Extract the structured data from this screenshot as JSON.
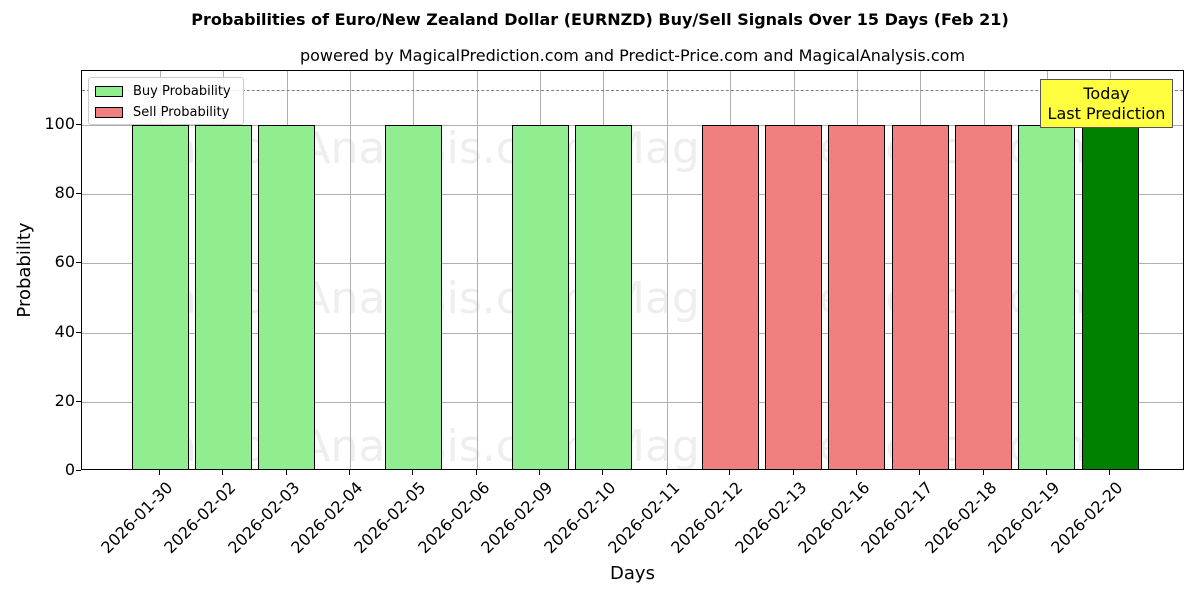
{
  "title": "Probabilities of Euro/New Zealand Dollar (EURNZD) Buy/Sell Signals Over 15 Days (Feb 21)",
  "subtitle": "powered by MagicalPrediction.com and Predict-Price.com and MagicalAnalysis.com",
  "legend": {
    "buy": "Buy Probability",
    "sell": "Sell Probability"
  },
  "annotation": {
    "line1": "Today",
    "line2": "Last Prediction"
  },
  "watermarks": [
    "MagicalAnalysis.com",
    "MagicalPrediction.com"
  ],
  "colors": {
    "buy": "#90ee90",
    "sell": "#f08080",
    "today": "#008000",
    "annotation_bg": "#ffff40"
  },
  "chart_data": {
    "type": "bar",
    "title": "Probabilities of Euro/New Zealand Dollar (EURNZD) Buy/Sell Signals Over 15 Days (Feb 21)",
    "subtitle": "powered by MagicalPrediction.com and Predict-Price.com and MagicalAnalysis.com",
    "xlabel": "Days",
    "ylabel": "Probability",
    "ylim": [
      0,
      115
    ],
    "yticks": [
      0,
      20,
      40,
      60,
      80,
      100
    ],
    "grid": true,
    "legend_position": "upper left",
    "reference_line": {
      "y": 110,
      "style": "dashed"
    },
    "categories": [
      "2026-01-30",
      "2026-02-02",
      "2026-02-03",
      "2026-02-04",
      "2026-02-05",
      "2026-02-06",
      "2026-02-09",
      "2026-02-10",
      "2026-02-11",
      "2026-02-12",
      "2026-02-13",
      "2026-02-16",
      "2026-02-17",
      "2026-02-18",
      "2026-02-19",
      "2026-02-20"
    ],
    "series": [
      {
        "name": "Buy Probability",
        "values": [
          100,
          100,
          100,
          0,
          100,
          0,
          100,
          100,
          0,
          0,
          0,
          0,
          0,
          0,
          100,
          100
        ]
      },
      {
        "name": "Sell Probability",
        "values": [
          0,
          0,
          0,
          0,
          0,
          0,
          0,
          0,
          0,
          100,
          100,
          100,
          100,
          100,
          0,
          0
        ]
      }
    ],
    "annotations": [
      {
        "text": "Today\nLast Prediction",
        "x": "2026-02-20"
      }
    ]
  }
}
